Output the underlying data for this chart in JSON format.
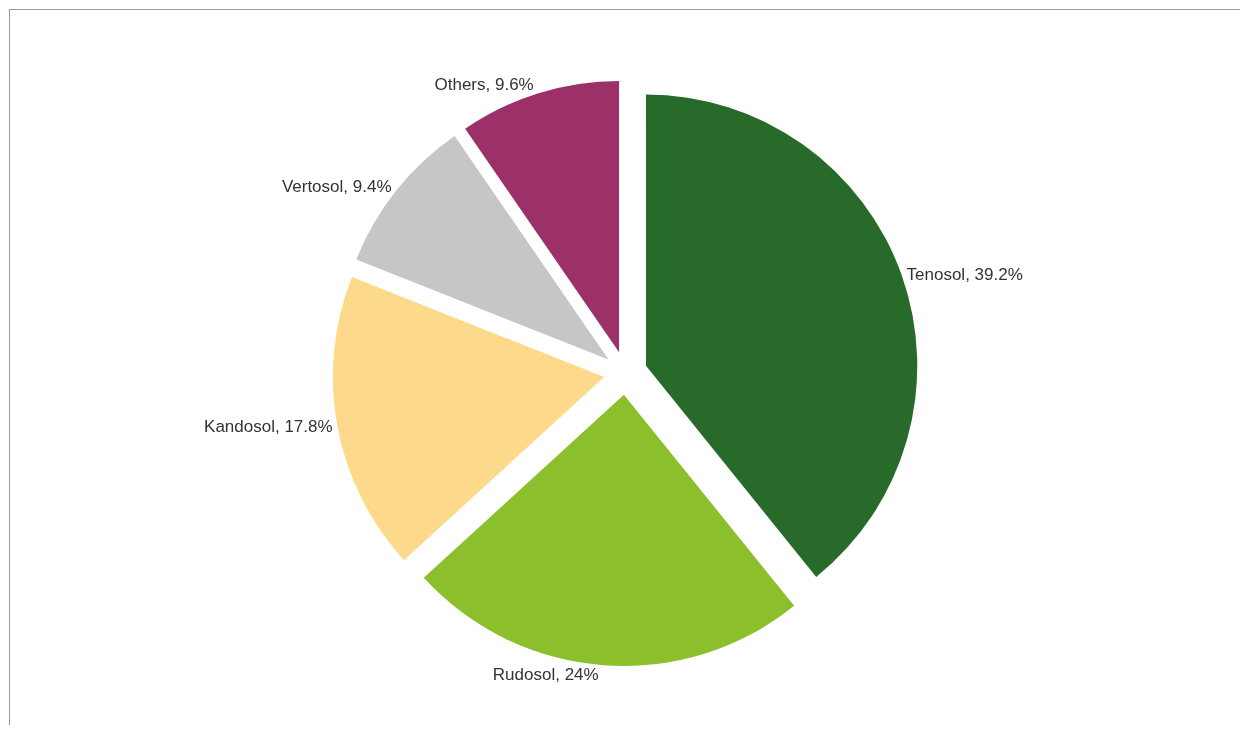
{
  "chart_data": {
    "type": "pie",
    "categories": [
      "Tenosol",
      "Rudosol",
      "Kandosol",
      "Vertosol",
      "Others"
    ],
    "values": [
      39.2,
      24,
      17.8,
      9.4,
      9.6
    ],
    "value_labels": [
      "39.2%",
      "24%",
      "17.8%",
      "9.4%",
      "9.6%"
    ],
    "colors": [
      "#286a2a",
      "#8cbf2c",
      "#fdd98c",
      "#c6c6c6",
      "#9c3068"
    ],
    "legend": false
  }
}
